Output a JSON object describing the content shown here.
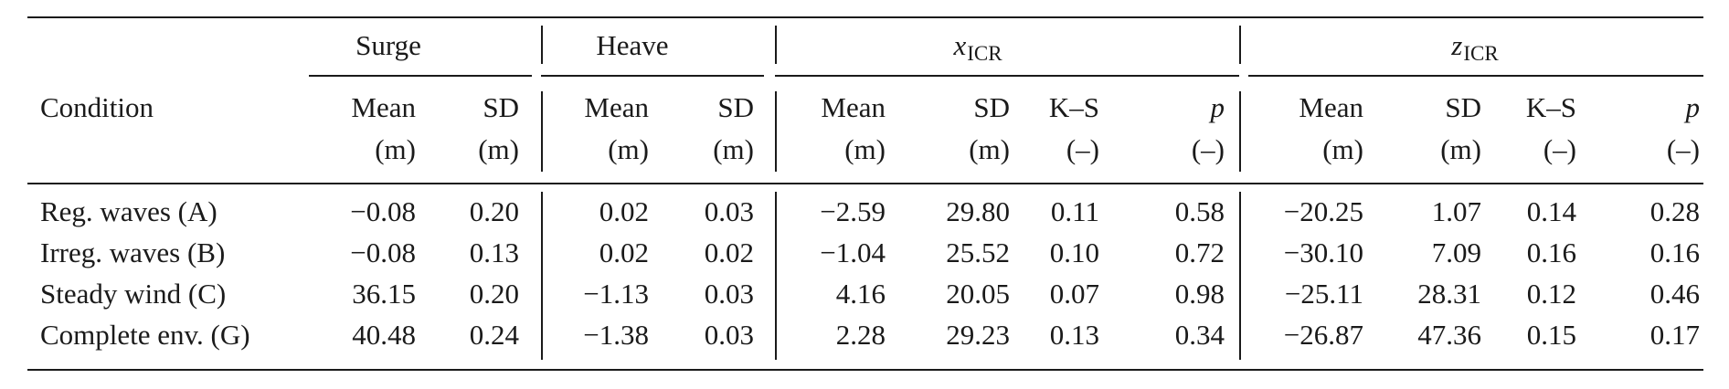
{
  "header": {
    "condition": "Condition",
    "groups": [
      {
        "name": "Surge",
        "var": "",
        "sub": ""
      },
      {
        "name": "Heave",
        "var": "",
        "sub": ""
      },
      {
        "name": "",
        "var": "x",
        "sub": "ICR"
      },
      {
        "name": "",
        "var": "z",
        "sub": "ICR"
      }
    ],
    "cols": [
      {
        "l1": "Mean",
        "l2": "(m)"
      },
      {
        "l1": "SD",
        "l2": "(m)"
      },
      {
        "l1": "Mean",
        "l2": "(m)"
      },
      {
        "l1": "SD",
        "l2": "(m)"
      },
      {
        "l1": "Mean",
        "l2": "(m)"
      },
      {
        "l1": "SD",
        "l2": "(m)"
      },
      {
        "l1": "K–S",
        "l2": "(–)"
      },
      {
        "l1": "p",
        "l2": "(–)"
      },
      {
        "l1": "Mean",
        "l2": "(m)"
      },
      {
        "l1": "SD",
        "l2": "(m)"
      },
      {
        "l1": "K–S",
        "l2": "(–)"
      },
      {
        "l1": "p",
        "l2": "(–)"
      }
    ]
  },
  "rows": [
    {
      "condition": "Reg. waves (A)",
      "values": [
        "−0.08",
        "0.20",
        "0.02",
        "0.03",
        "−2.59",
        "29.80",
        "0.11",
        "0.58",
        "−20.25",
        "1.07",
        "0.14",
        "0.28"
      ]
    },
    {
      "condition": "Irreg. waves (B)",
      "values": [
        "−0.08",
        "0.13",
        "0.02",
        "0.02",
        "−1.04",
        "25.52",
        "0.10",
        "0.72",
        "−30.10",
        "7.09",
        "0.16",
        "0.16"
      ]
    },
    {
      "condition": "Steady wind (C)",
      "values": [
        "36.15",
        "0.20",
        "−1.13",
        "0.03",
        "4.16",
        "20.05",
        "0.07",
        "0.98",
        "−25.11",
        "28.31",
        "0.12",
        "0.46"
      ]
    },
    {
      "condition": "Complete env. (G)",
      "values": [
        "40.48",
        "0.24",
        "−1.38",
        "0.03",
        "2.28",
        "29.23",
        "0.13",
        "0.34",
        "−26.87",
        "47.36",
        "0.15",
        "0.17"
      ]
    }
  ]
}
